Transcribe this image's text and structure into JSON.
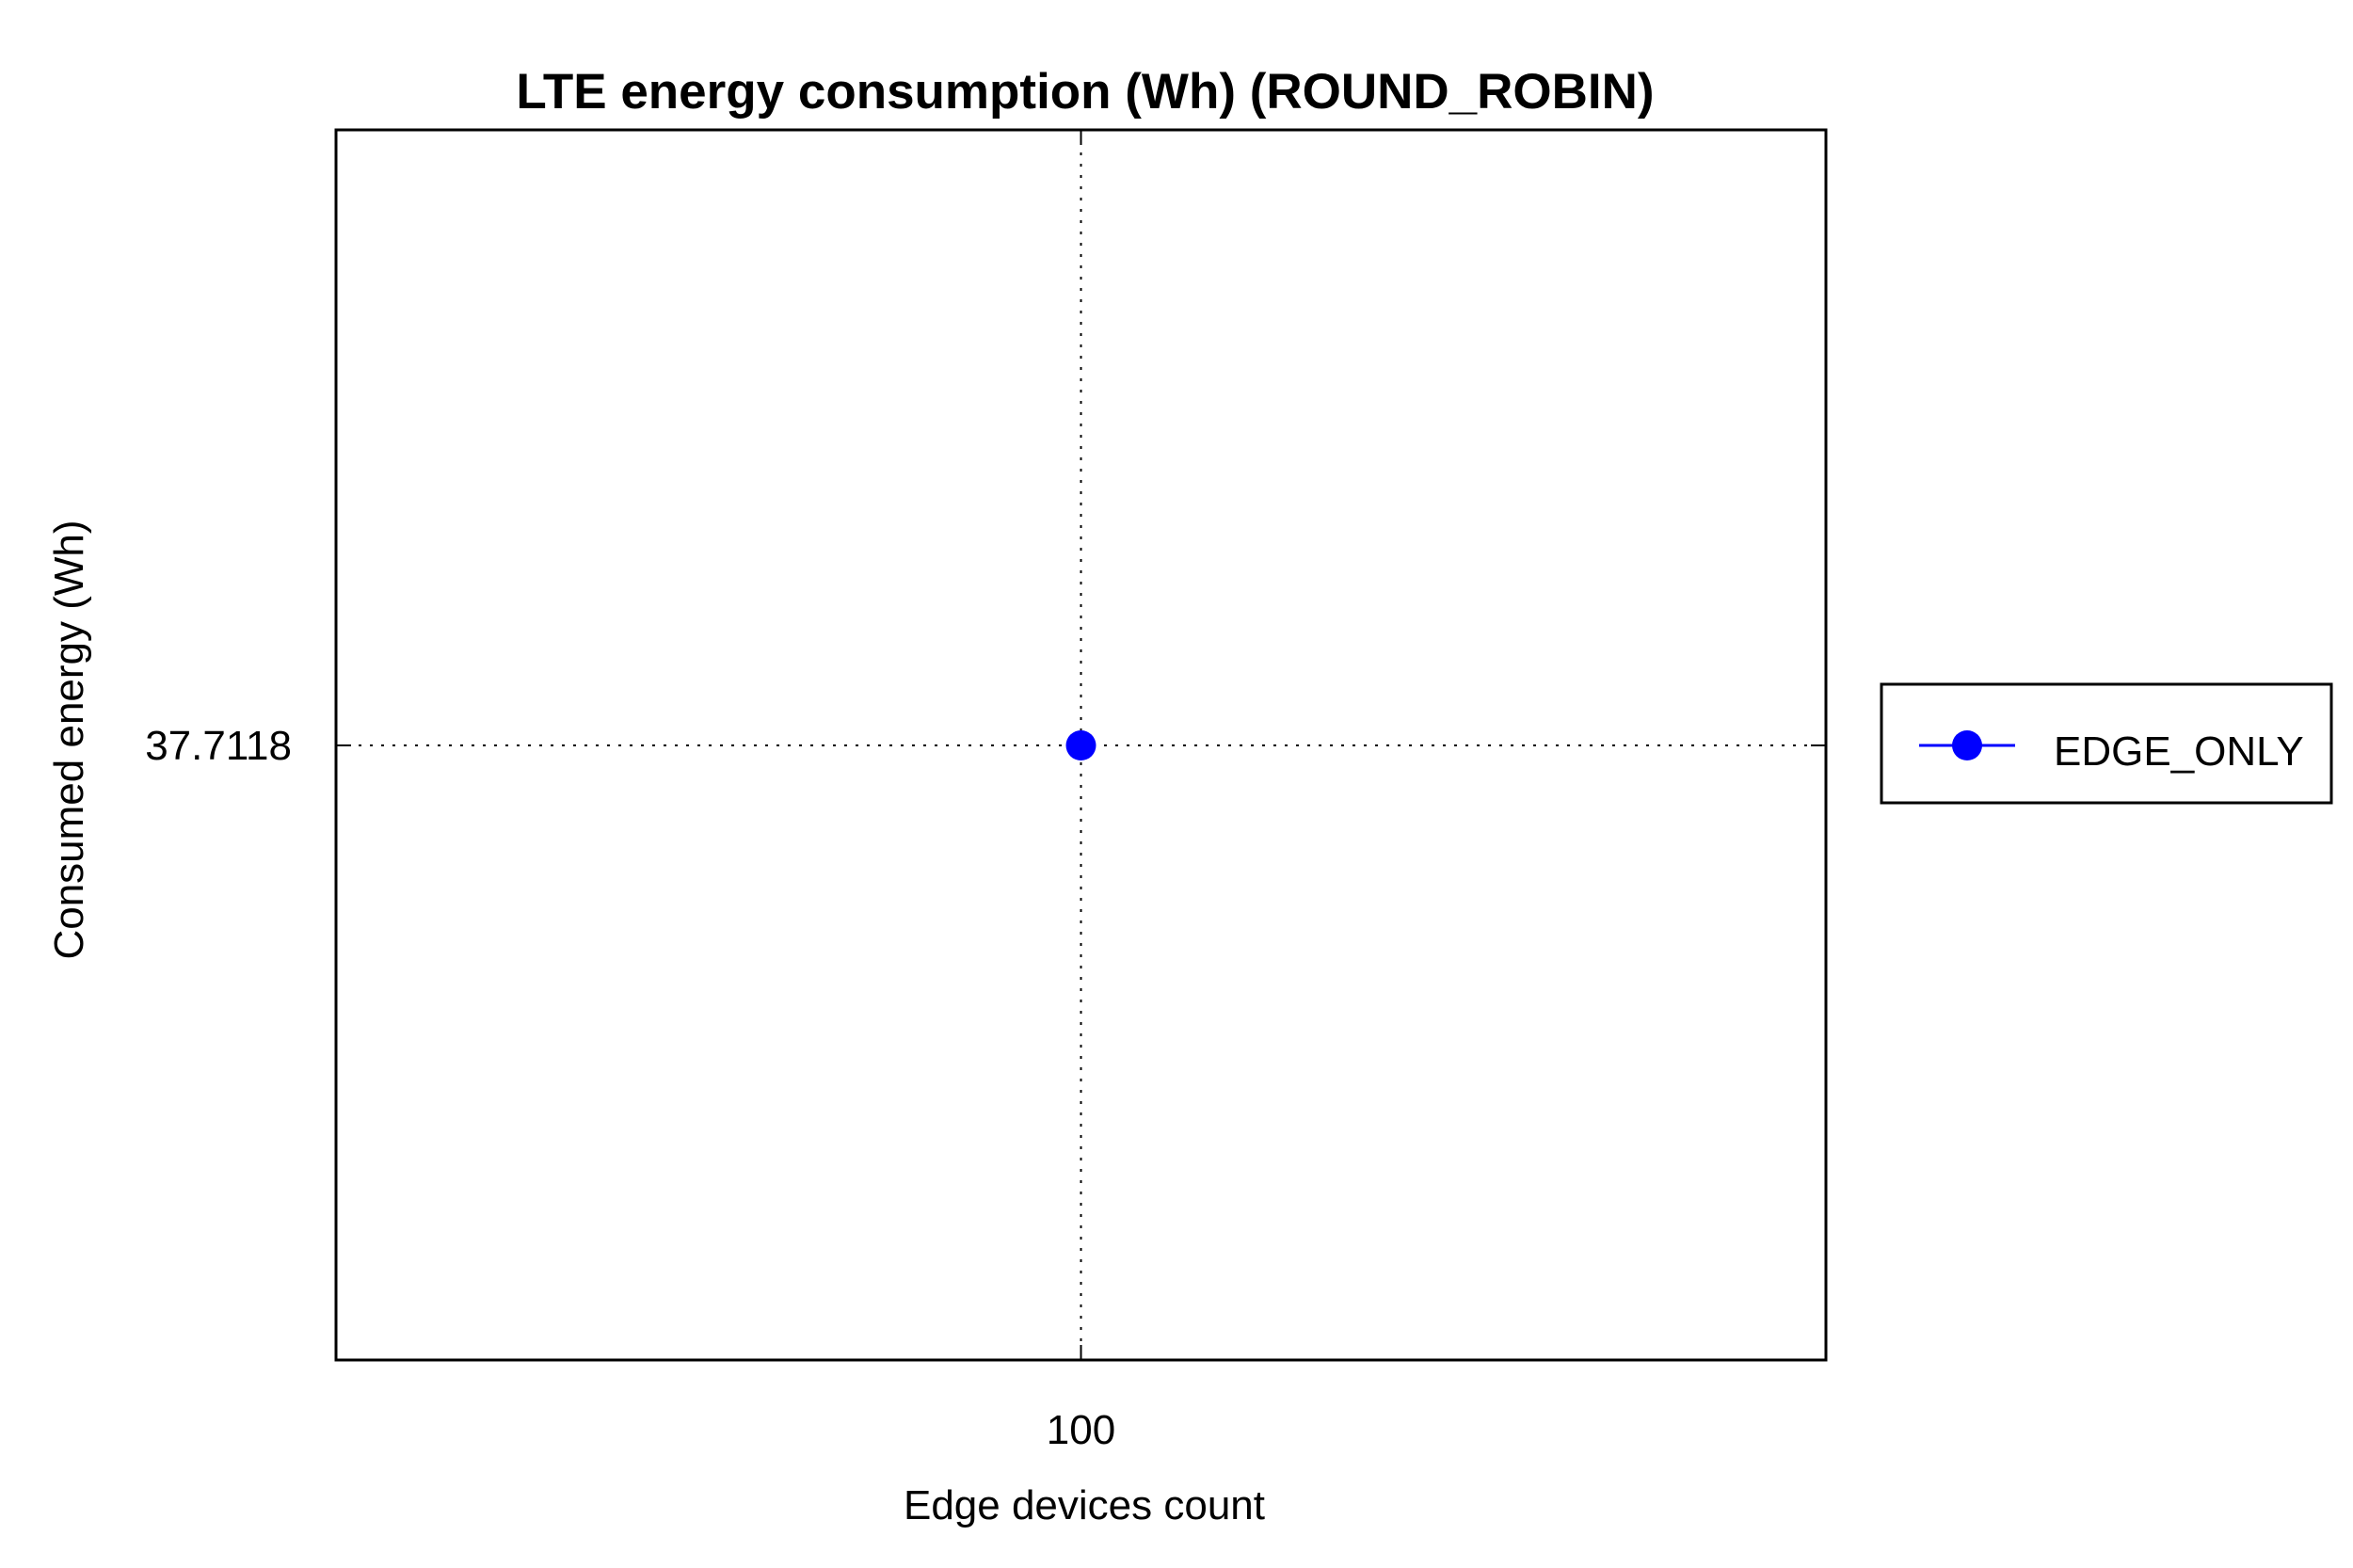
{
  "chart_data": {
    "type": "line",
    "title": "LTE energy consumption (Wh) (ROUND_ROBIN)",
    "xlabel": "Edge devices count",
    "ylabel": "Consumed energy (Wh)",
    "x_ticks": [
      "100"
    ],
    "y_ticks": [
      "37.7118"
    ],
    "grid": true,
    "legend_position": "right",
    "series": [
      {
        "name": "EDGE_ONLY",
        "color": "#0000ff",
        "marker": "circle",
        "x": [
          100
        ],
        "y": [
          37.7118
        ]
      }
    ]
  }
}
